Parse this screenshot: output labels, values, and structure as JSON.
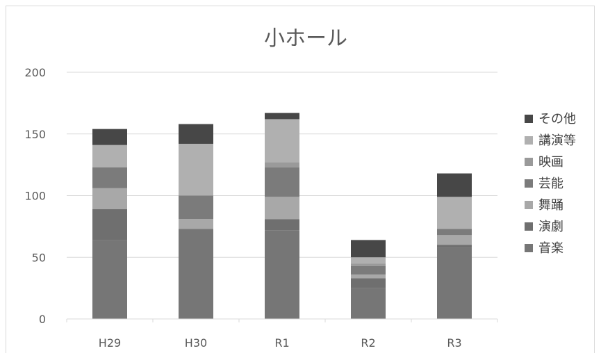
{
  "chart_data": {
    "type": "bar",
    "stacked": true,
    "title": "小ホール",
    "xlabel": "",
    "ylabel": "",
    "categories": [
      "H29",
      "H30",
      "R1",
      "R2",
      "R3"
    ],
    "ylim": [
      0,
      200
    ],
    "yticks": [
      0,
      50,
      100,
      150,
      200
    ],
    "grid": true,
    "legend_position": "right",
    "series": [
      {
        "name": "音楽",
        "color": "#767676",
        "values": [
          64,
          73,
          72,
          25,
          58
        ]
      },
      {
        "name": "演劇",
        "color": "#6f6f6f",
        "values": [
          25,
          0,
          9,
          8,
          2
        ]
      },
      {
        "name": "舞踊",
        "color": "#a8a8a8",
        "values": [
          17,
          8,
          18,
          3,
          8
        ]
      },
      {
        "name": "芸能",
        "color": "#7b7b7b",
        "values": [
          17,
          19,
          24,
          7,
          5
        ]
      },
      {
        "name": "映画",
        "color": "#9a9a9a",
        "values": [
          0,
          0,
          4,
          2,
          0
        ]
      },
      {
        "name": "講演等",
        "color": "#b0b0b0",
        "values": [
          18,
          42,
          35,
          5,
          26
        ]
      },
      {
        "name": "その他",
        "color": "#474747",
        "values": [
          13,
          16,
          5,
          14,
          19
        ]
      }
    ]
  }
}
